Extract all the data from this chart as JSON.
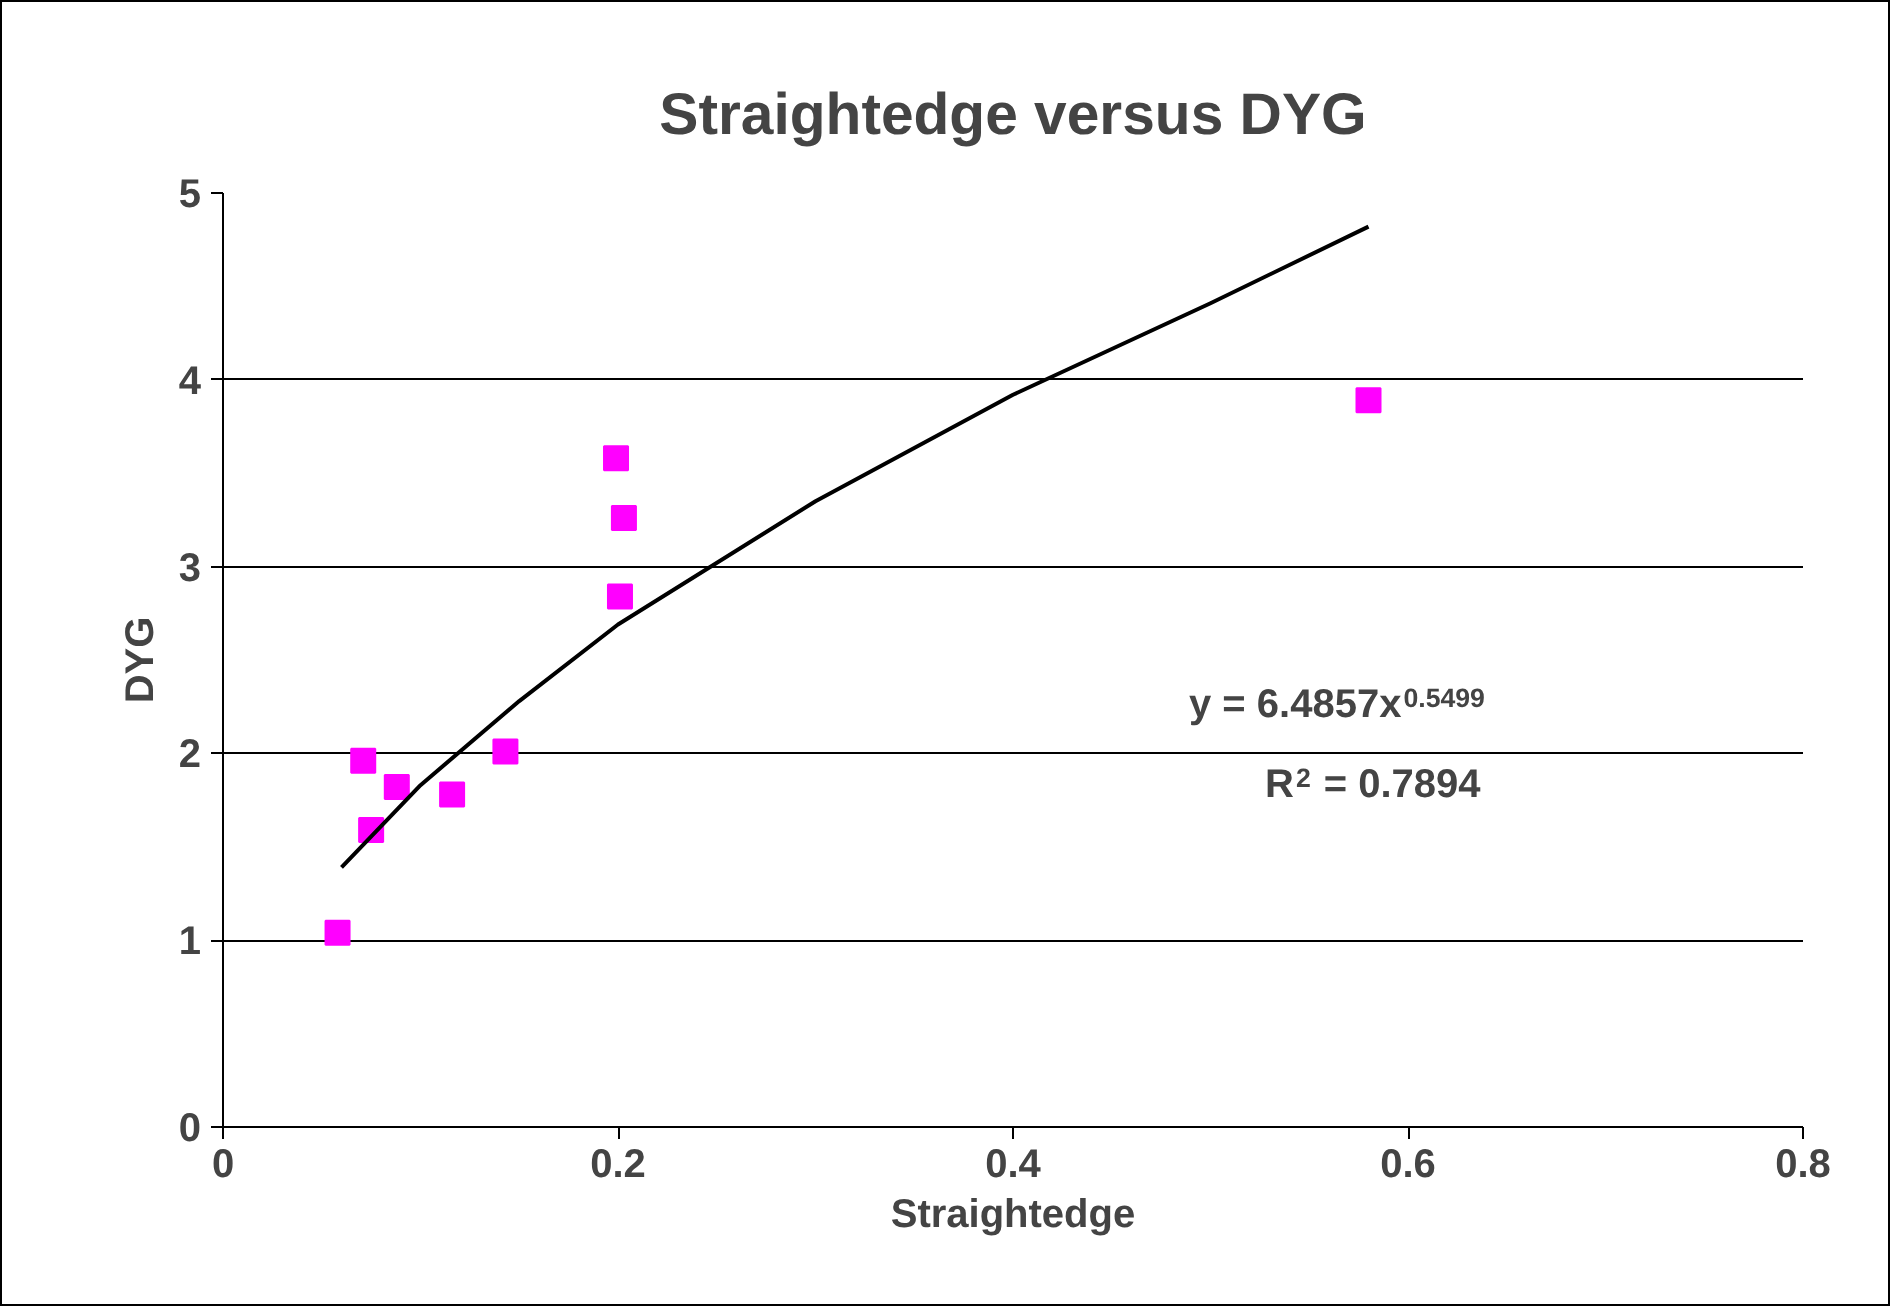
{
  "chart_data": {
    "type": "scatter",
    "title": "Straightedge versus DYG",
    "xlabel": "Straightedge",
    "ylabel": "DYG",
    "xlim": [
      0,
      0.8
    ],
    "xticks": [
      0,
      0.2,
      0.4,
      0.6,
      0.8
    ],
    "ylim": [
      0,
      5
    ],
    "yticks": [
      0,
      1,
      2,
      3,
      4,
      5
    ],
    "grid": "y",
    "marker": "square",
    "series": [
      {
        "type": "scatter",
        "color": "#ff00ff",
        "x": [
          0.058,
          0.071,
          0.075,
          0.088,
          0.116,
          0.143,
          0.199,
          0.203,
          0.201,
          0.58
        ],
        "values": [
          1.04,
          1.96,
          1.59,
          1.82,
          1.78,
          2.01,
          3.58,
          3.26,
          2.84,
          3.89
        ]
      },
      {
        "type": "line",
        "color": "#000000",
        "marker": "none",
        "x": [
          0.06,
          0.1,
          0.15,
          0.2,
          0.3,
          0.4,
          0.5,
          0.58
        ],
        "values": [
          1.39,
          1.83,
          2.28,
          2.69,
          3.35,
          3.92,
          4.41,
          4.82
        ]
      }
    ],
    "annotations": [
      "y = 6.4857x$^{0.5499}$",
      "R$^{2}$ = 0.7894"
    ]
  }
}
